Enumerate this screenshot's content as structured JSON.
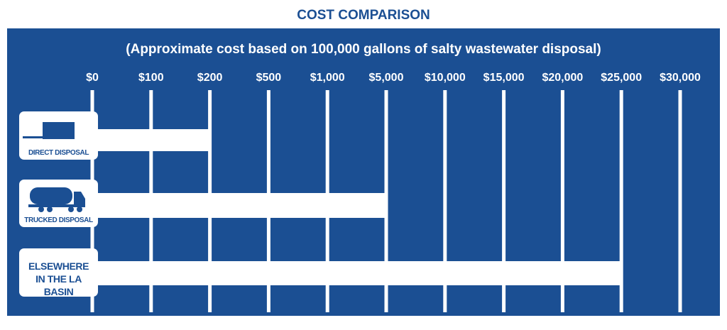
{
  "chart_data": {
    "type": "bar",
    "orientation": "horizontal",
    "title": "COST COMPARISON",
    "subtitle": "(Approximate cost based on 100,000 gallons of salty wastewater disposal)",
    "categories": [
      "DIRECT DISPOSAL",
      "TRUCKED DISPOSAL",
      "ELSEWHERE IN THE LA BASIN"
    ],
    "values": [
      200,
      5000,
      25000
    ],
    "color": "#ffffff",
    "background": "#1b4f93",
    "xlim": [
      0,
      30000
    ],
    "xticks": [
      {
        "value": 0,
        "label": "$0"
      },
      {
        "value": 100,
        "label": "$100"
      },
      {
        "value": 200,
        "label": "$200"
      },
      {
        "value": 500,
        "label": "$500"
      },
      {
        "value": 1000,
        "label": "$1,000"
      },
      {
        "value": 5000,
        "label": "$5,000"
      },
      {
        "value": 10000,
        "label": "$10,000"
      },
      {
        "value": 15000,
        "label": "$15,000"
      },
      {
        "value": 20000,
        "label": "$20,000"
      },
      {
        "value": 25000,
        "label": "$25,000"
      },
      {
        "value": 30000,
        "label": "$30,000"
      }
    ],
    "grid": true
  }
}
